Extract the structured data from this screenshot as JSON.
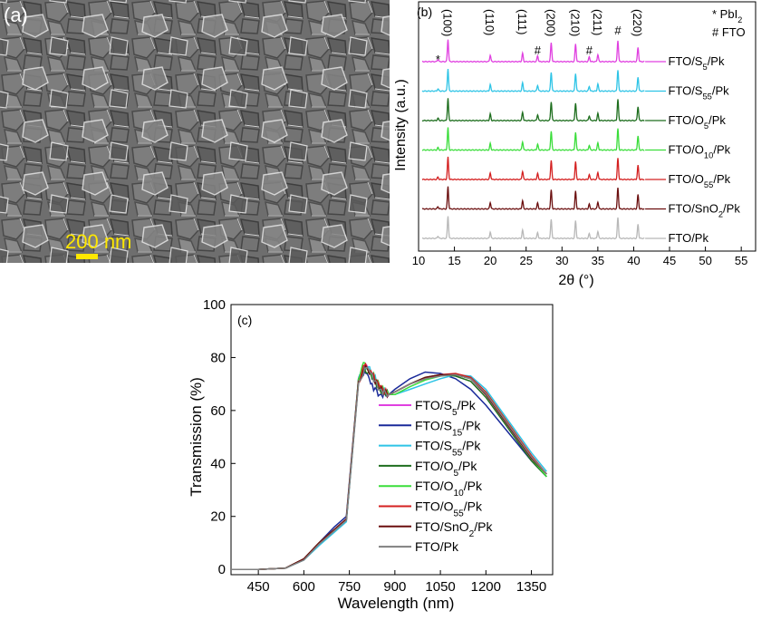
{
  "panel_a": {
    "label": "(a)",
    "scale_bar_text": "200 nm",
    "scale_bar_color": "#FFE800"
  },
  "panel_b": {
    "label": "(b)"
  },
  "panel_c": {
    "label": "(c)"
  },
  "chart_data": [
    {
      "type": "line",
      "panel": "b",
      "xlabel": "2θ (°)",
      "ylabel": "Intensity (a.u.)",
      "xlim": [
        10,
        57
      ],
      "xticks": [
        10,
        15,
        20,
        25,
        30,
        35,
        40,
        45,
        50,
        55
      ],
      "peak_labels": [
        {
          "text": "*",
          "x": 12.7
        },
        {
          "text": "(100)",
          "x": 14.1
        },
        {
          "text": "(110)",
          "x": 20.0
        },
        {
          "text": "(111)",
          "x": 24.5
        },
        {
          "text": "#",
          "x": 26.6
        },
        {
          "text": "(200)",
          "x": 28.5
        },
        {
          "text": "(210)",
          "x": 31.9
        },
        {
          "text": "#",
          "x": 33.8
        },
        {
          "text": "(211)",
          "x": 35.0
        },
        {
          "text": "#",
          "x": 37.8
        },
        {
          "text": "(220)",
          "x": 40.6
        }
      ],
      "legend_notes": [
        "* PbI2",
        "# FTO"
      ],
      "peaks": [
        {
          "x": 12.7,
          "h": 0.1
        },
        {
          "x": 14.1,
          "h": 0.95
        },
        {
          "x": 20.0,
          "h": 0.28
        },
        {
          "x": 24.5,
          "h": 0.35
        },
        {
          "x": 26.6,
          "h": 0.25
        },
        {
          "x": 28.5,
          "h": 0.8
        },
        {
          "x": 31.9,
          "h": 0.75
        },
        {
          "x": 33.8,
          "h": 0.2
        },
        {
          "x": 35.0,
          "h": 0.3
        },
        {
          "x": 37.8,
          "h": 0.9
        },
        {
          "x": 40.6,
          "h": 0.6
        }
      ],
      "series": [
        {
          "name": "FTO/S5/Pk",
          "base": "FTO/S",
          "sub": "5",
          "tail": "/Pk",
          "color": "#E040E0"
        },
        {
          "name": "FTO/S55/Pk",
          "base": "FTO/S",
          "sub": "55",
          "tail": "/Pk",
          "color": "#2EC4E6"
        },
        {
          "name": "FTO/O5/Pk",
          "base": "FTO/O",
          "sub": "5",
          "tail": "/Pk",
          "color": "#1E6E1E"
        },
        {
          "name": "FTO/O10/Pk",
          "base": "FTO/O",
          "sub": "10",
          "tail": "/Pk",
          "color": "#3ADD3A"
        },
        {
          "name": "FTO/O55/Pk",
          "base": "FTO/O",
          "sub": "55",
          "tail": "/Pk",
          "color": "#D42020"
        },
        {
          "name": "FTO/SnO2/Pk",
          "base": "FTO/SnO",
          "sub": "2",
          "tail": "/Pk",
          "color": "#6B0F0F"
        },
        {
          "name": "FTO/Pk",
          "base": "FTO/Pk",
          "sub": "",
          "tail": "",
          "color": "#B8B8B8"
        }
      ]
    },
    {
      "type": "line",
      "panel": "c",
      "xlabel": "Wavelength (nm)",
      "ylabel": "Transmission (%)",
      "xlim": [
        360,
        1420
      ],
      "ylim": [
        -2,
        100
      ],
      "xticks": [
        450,
        600,
        750,
        900,
        1050,
        1200,
        1350
      ],
      "yticks": [
        0,
        20,
        40,
        60,
        80,
        100
      ],
      "legend_position": "center",
      "series": [
        {
          "name": "FTO/S5/Pk",
          "base": "FTO/S",
          "sub": "5",
          "tail": "/Pk",
          "color": "#E040E0",
          "x": [
            360,
            450,
            540,
            600,
            650,
            700,
            740,
            760,
            780,
            800,
            820,
            850,
            880,
            900,
            950,
            1000,
            1050,
            1100,
            1150,
            1200,
            1250,
            1300,
            1350,
            1400
          ],
          "y": [
            0,
            0,
            0.5,
            4,
            10,
            15,
            19,
            45,
            72,
            77,
            74,
            68,
            66,
            67,
            70,
            72,
            73.5,
            73.5,
            72,
            66,
            58,
            50,
            42,
            36
          ]
        },
        {
          "name": "FTO/S15/Pk",
          "base": "FTO/S",
          "sub": "15",
          "tail": "/Pk",
          "color": "#1A2A9A",
          "x": [
            360,
            450,
            540,
            600,
            650,
            700,
            740,
            760,
            780,
            800,
            820,
            850,
            880,
            900,
            950,
            1000,
            1050,
            1100,
            1150,
            1200,
            1250,
            1300,
            1350,
            1400
          ],
          "y": [
            0,
            0,
            0.5,
            4,
            10,
            16,
            20,
            46,
            72,
            75,
            70,
            66,
            66,
            68,
            72,
            74.5,
            74,
            72,
            68,
            62,
            55,
            48,
            41,
            35
          ]
        },
        {
          "name": "FTO/S55/Pk",
          "base": "FTO/S",
          "sub": "55",
          "tail": "/Pk",
          "color": "#2EC4E6",
          "x": [
            360,
            450,
            540,
            600,
            650,
            700,
            740,
            760,
            780,
            800,
            820,
            850,
            880,
            900,
            950,
            1000,
            1050,
            1100,
            1150,
            1200,
            1250,
            1300,
            1350,
            1400
          ],
          "y": [
            0,
            0,
            0.5,
            3.5,
            9,
            14,
            18,
            44,
            71,
            77,
            75,
            69,
            66,
            66,
            68,
            70,
            72,
            73.5,
            73,
            68,
            60,
            52,
            44,
            37
          ]
        },
        {
          "name": "FTO/O5/Pk",
          "base": "FTO/O",
          "sub": "5",
          "tail": "/Pk",
          "color": "#1E6E1E",
          "x": [
            360,
            450,
            540,
            600,
            650,
            700,
            740,
            760,
            780,
            800,
            820,
            850,
            880,
            900,
            950,
            1000,
            1050,
            1100,
            1150,
            1200,
            1250,
            1300,
            1350,
            1400
          ],
          "y": [
            0,
            0,
            0.5,
            4,
            10,
            15,
            19,
            45,
            71,
            76,
            74,
            68,
            66,
            67,
            70,
            72.5,
            73.5,
            73,
            71,
            65,
            57,
            49,
            41,
            35
          ]
        },
        {
          "name": "FTO/O10/Pk",
          "base": "FTO/O",
          "sub": "10",
          "tail": "/Pk",
          "color": "#3ADD3A",
          "x": [
            360,
            450,
            540,
            600,
            650,
            700,
            740,
            760,
            780,
            800,
            820,
            850,
            880,
            900,
            950,
            1000,
            1050,
            1100,
            1150,
            1200,
            1250,
            1300,
            1350,
            1400
          ],
          "y": [
            0,
            0,
            0.5,
            4,
            10,
            15,
            19,
            45,
            72,
            78,
            75,
            69,
            66,
            66,
            69,
            71.5,
            73,
            73.5,
            72,
            67,
            59,
            51,
            42,
            35
          ]
        },
        {
          "name": "FTO/O55/Pk",
          "base": "FTO/O",
          "sub": "55",
          "tail": "/Pk",
          "color": "#D42020",
          "x": [
            360,
            450,
            540,
            600,
            650,
            700,
            740,
            760,
            780,
            800,
            820,
            850,
            880,
            900,
            950,
            1000,
            1050,
            1100,
            1150,
            1200,
            1250,
            1300,
            1350,
            1400
          ],
          "y": [
            0,
            0,
            0.5,
            4,
            10,
            15,
            19,
            45,
            71,
            77,
            75,
            69,
            66,
            67,
            70,
            72,
            73.5,
            74,
            72.5,
            67,
            59,
            51,
            43,
            36
          ]
        },
        {
          "name": "FTO/SnO2/Pk",
          "base": "FTO/SnO",
          "sub": "2",
          "tail": "/Pk",
          "color": "#6B0F0F",
          "x": [
            360,
            450,
            540,
            600,
            650,
            700,
            740,
            760,
            780,
            800,
            820,
            850,
            880,
            900,
            950,
            1000,
            1050,
            1100,
            1150,
            1200,
            1250,
            1300,
            1350,
            1400
          ],
          "y": [
            0,
            0,
            0.5,
            4,
            10,
            15,
            19,
            45,
            71,
            76,
            74,
            68,
            66,
            67,
            70,
            72.5,
            73.5,
            73.5,
            72,
            66,
            58,
            50,
            42,
            36
          ]
        },
        {
          "name": "FTO/Pk",
          "base": "FTO/Pk",
          "sub": "",
          "tail": "",
          "color": "#808080",
          "x": [
            360,
            450,
            540,
            600,
            650,
            700,
            740,
            760,
            780,
            800,
            820,
            850,
            880,
            900,
            950,
            1000,
            1050,
            1100,
            1150,
            1200,
            1250,
            1300,
            1350,
            1400
          ],
          "y": [
            0,
            0,
            0.5,
            3.5,
            9.5,
            14.5,
            18.5,
            44,
            70,
            76,
            74,
            68,
            66,
            67,
            70,
            72,
            73,
            73.5,
            72,
            66.5,
            58.5,
            50.5,
            42.5,
            36
          ]
        }
      ]
    }
  ]
}
